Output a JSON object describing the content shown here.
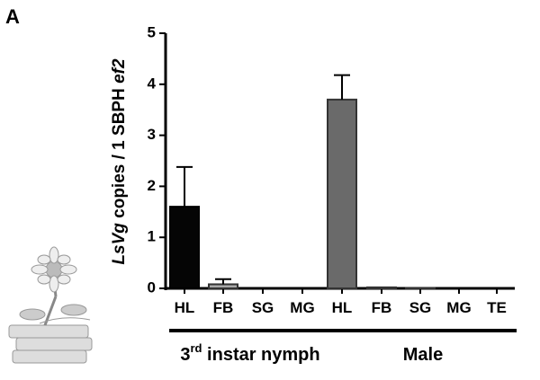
{
  "chart_data": {
    "type": "bar",
    "panel_label": "A",
    "y_label": [
      "LsVg",
      " copies / 1 SBPH ",
      "ef2"
    ],
    "categories": [
      "HL",
      "FB",
      "SG",
      "MG",
      "HL",
      "FB",
      "SG",
      "MG",
      "TE"
    ],
    "values": [
      1.6,
      0.08,
      0,
      0,
      3.7,
      0.02,
      0.01,
      0,
      0
    ],
    "errors": [
      0.78,
      0.1,
      null,
      null,
      0.48,
      null,
      null,
      null,
      null
    ],
    "colors": [
      "#050505",
      "#a8a8a8",
      "#a8a8a8",
      "#a8a8a8",
      "#6a6a6a",
      "#6a6a6a",
      "#6a6a6a",
      "#6a6a6a",
      "#6a6a6a"
    ],
    "group_labels": [
      [
        "3",
        "rd",
        " instar nymph"
      ],
      "Male"
    ],
    "ylim": [
      0,
      5
    ],
    "yticks": [
      0,
      1,
      2,
      3,
      4,
      5
    ]
  }
}
